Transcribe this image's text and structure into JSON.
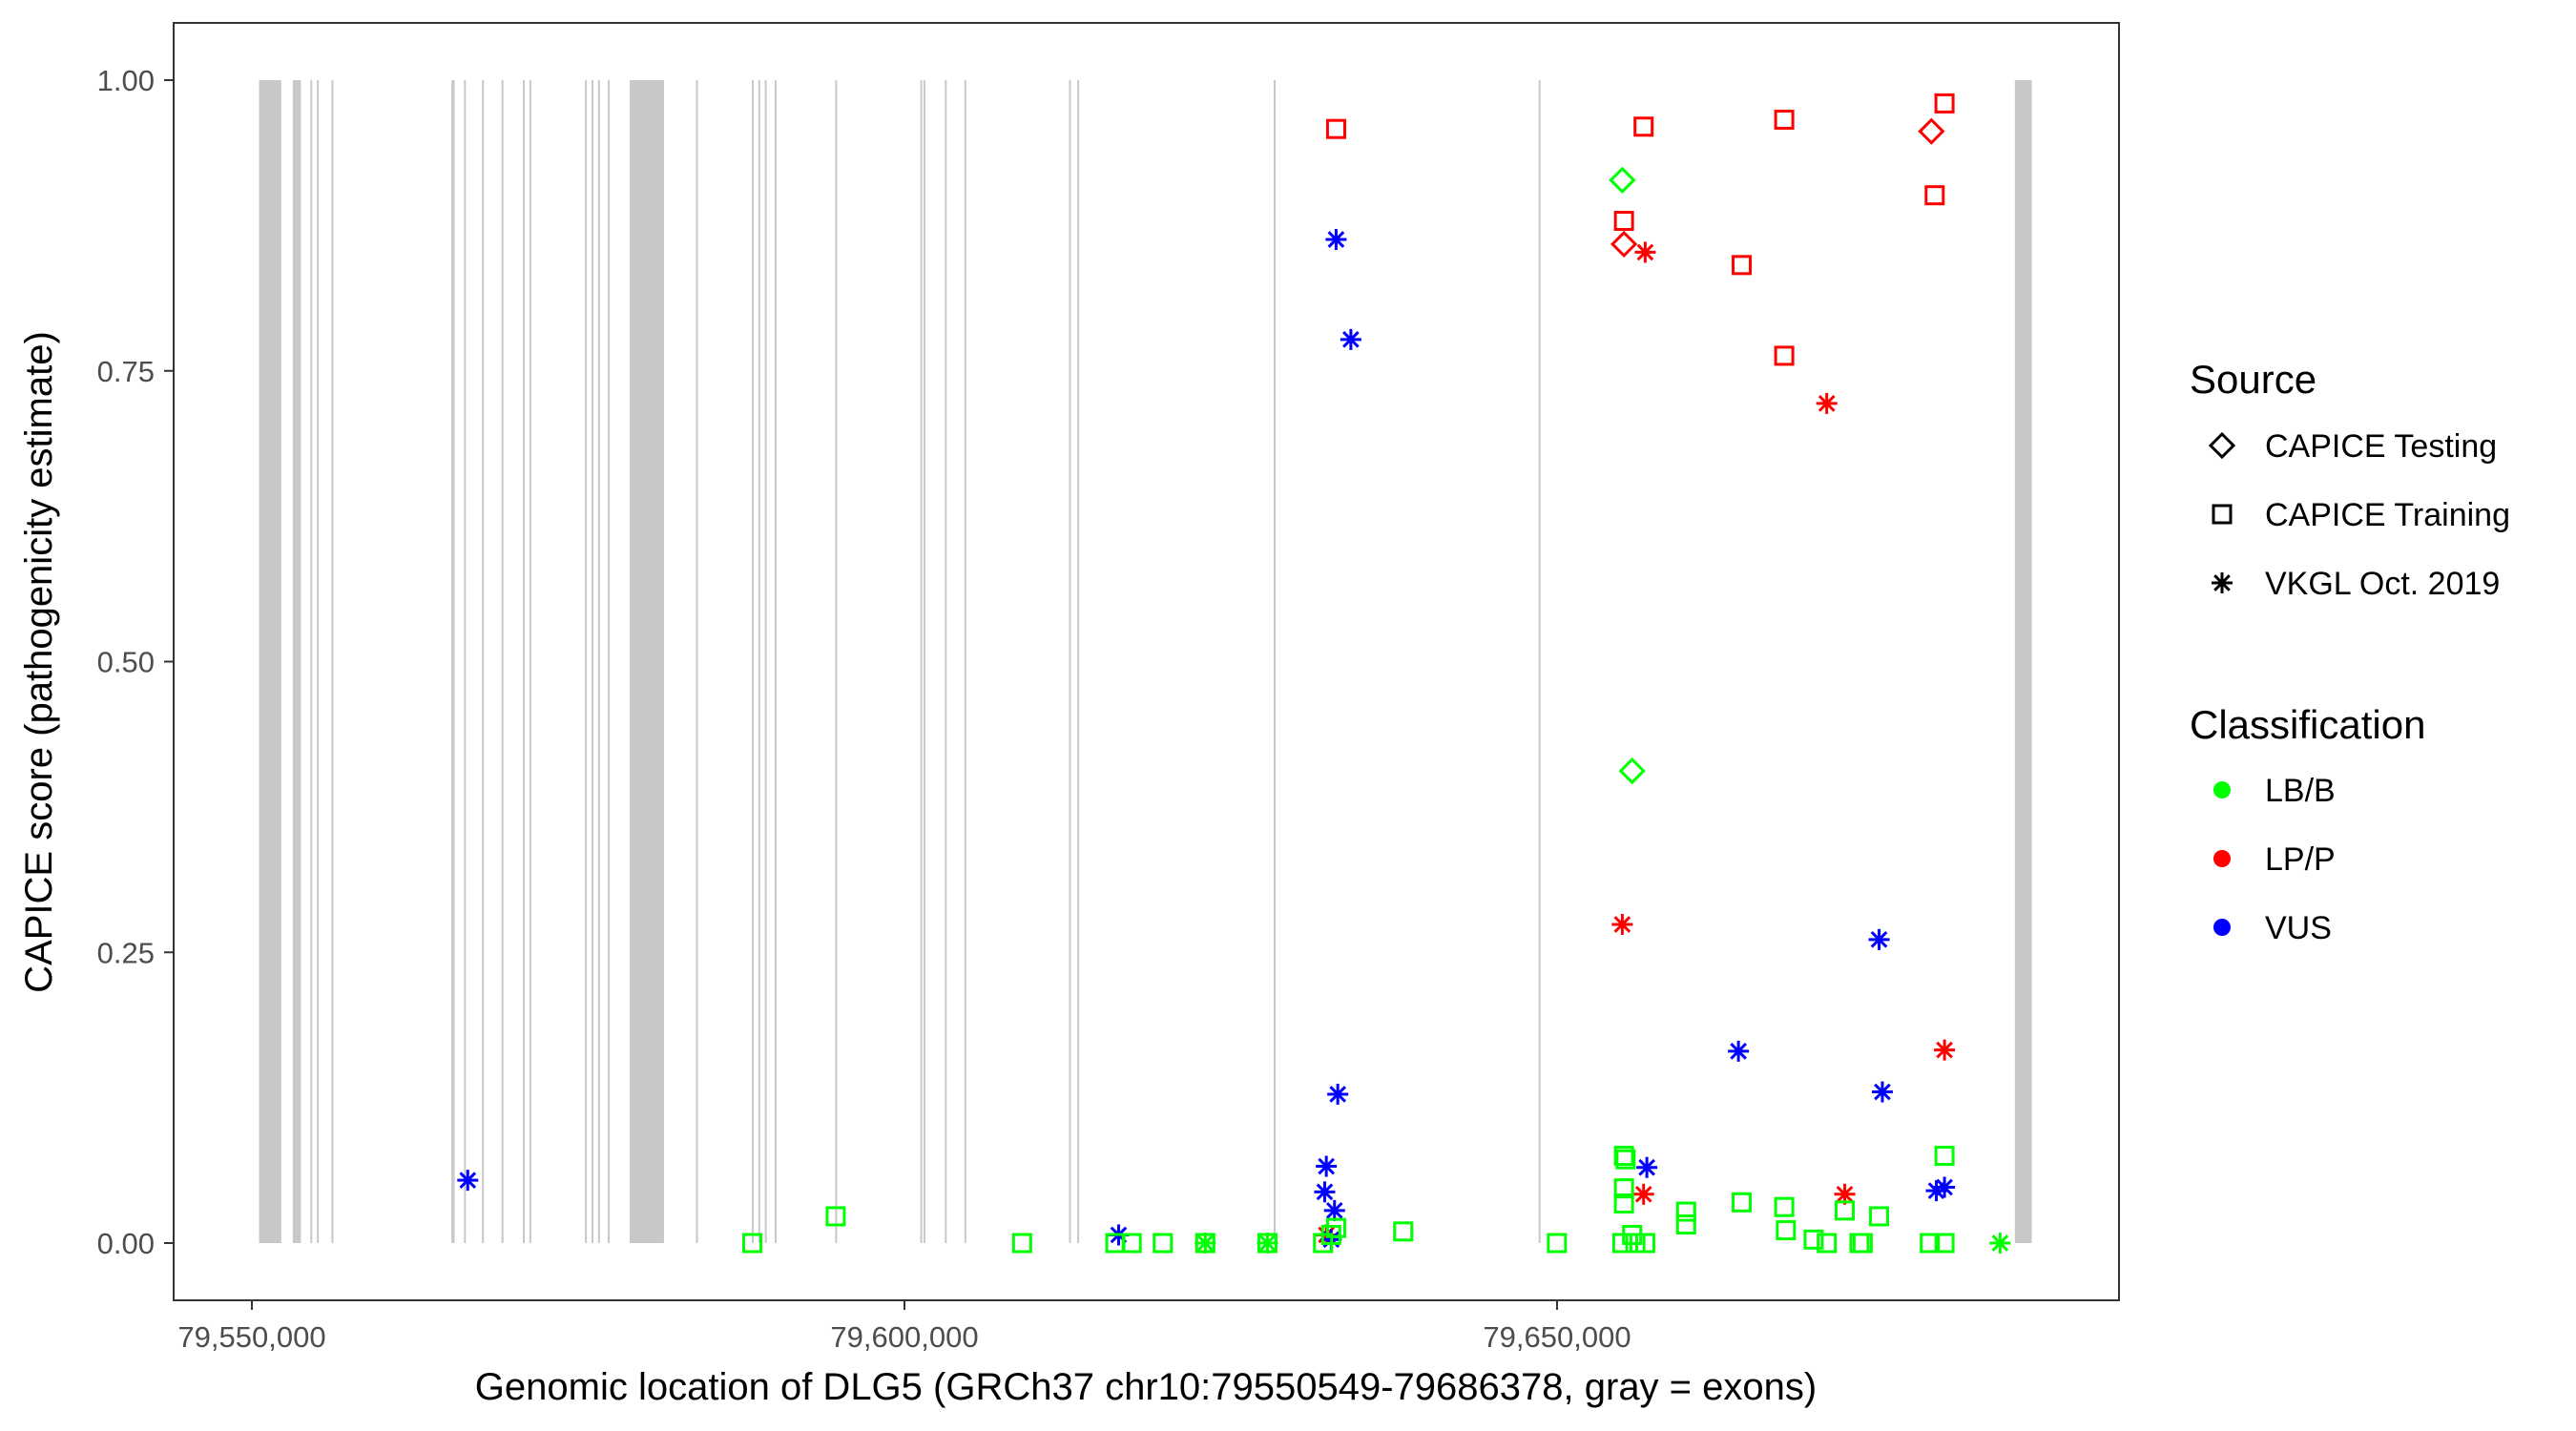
{
  "chart_data": {
    "type": "scatter",
    "xlabel": "Genomic location of DLG5 (GRCh37 chr10:79550549-79686378, gray = exons)",
    "ylabel": "CAPICE score (pathogenicity estimate)",
    "xlim": [
      79542500,
      79693000
    ],
    "ylim": [
      -0.045,
      1.045
    ],
    "x_ticks": [
      79550000,
      79600000,
      79650000
    ],
    "x_tick_labels": [
      "79,550,000",
      "79,600,000",
      "79,650,000"
    ],
    "y_ticks": [
      0,
      0.25,
      0.5,
      0.75,
      1.0
    ],
    "y_tick_labels": [
      "0.00",
      "0.25",
      "0.50",
      "0.75",
      "1.00"
    ],
    "grid": false,
    "exon_color": "#c8c8c8",
    "exons": [
      [
        79550549,
        79552255
      ],
      [
        79553133,
        79553759
      ],
      [
        79554480,
        79554560
      ],
      [
        79554980,
        79555060
      ],
      [
        79556100,
        79556180
      ],
      [
        79565287,
        79565537
      ],
      [
        79566250,
        79566330
      ],
      [
        79567630,
        79567710
      ],
      [
        79569130,
        79569210
      ],
      [
        79570760,
        79570840
      ],
      [
        79571260,
        79571340
      ],
      [
        79575520,
        79575600
      ],
      [
        79576020,
        79576100
      ],
      [
        79576520,
        79576600
      ],
      [
        79577270,
        79577350
      ],
      [
        79578944,
        79581576
      ],
      [
        79584030,
        79584130
      ],
      [
        79588300,
        79588380
      ],
      [
        79588800,
        79588880
      ],
      [
        79589300,
        79589380
      ],
      [
        79590050,
        79590130
      ],
      [
        79594690,
        79594770
      ],
      [
        79601210,
        79601290
      ],
      [
        79601460,
        79601540
      ],
      [
        79603090,
        79603170
      ],
      [
        79604590,
        79604670
      ],
      [
        79612610,
        79612690
      ],
      [
        79613240,
        79613310
      ],
      [
        79628290,
        79628330
      ],
      [
        79648590,
        79648630
      ],
      [
        79685073,
        79686378
      ]
    ],
    "legend": {
      "placement": "right",
      "source_title": "Source",
      "source_items": [
        {
          "label": "CAPICE Testing",
          "shape": "diamond"
        },
        {
          "label": "CAPICE Training",
          "shape": "square"
        },
        {
          "label": "VKGL Oct. 2019",
          "shape": "asterisk"
        }
      ],
      "class_title": "Classification",
      "class_items": [
        {
          "label": "LB/B",
          "color": "#00ff00"
        },
        {
          "label": "LP/P",
          "color": "#ff0000"
        },
        {
          "label": "VUS",
          "color": "#0000ff"
        }
      ]
    },
    "point_fields": [
      "position",
      "score",
      "source",
      "classification"
    ],
    "points": [
      [
        79633073,
        0.958,
        "CAPICE Training",
        "LP/P"
      ],
      [
        79656630,
        0.96,
        "CAPICE Training",
        "LP/P"
      ],
      [
        79667406,
        0.966,
        "CAPICE Training",
        "LP/P"
      ],
      [
        79679686,
        0.98,
        "CAPICE Training",
        "LP/P"
      ],
      [
        79678934,
        0.901,
        "CAPICE Training",
        "LP/P"
      ],
      [
        79655127,
        0.879,
        "CAPICE Training",
        "LP/P"
      ],
      [
        79664148,
        0.841,
        "CAPICE Training",
        "LP/P"
      ],
      [
        79667406,
        0.763,
        "CAPICE Training",
        "LP/P"
      ],
      [
        79655127,
        0.859,
        "CAPICE Testing",
        "LP/P"
      ],
      [
        79678683,
        0.956,
        "CAPICE Testing",
        "LP/P"
      ],
      [
        79655001,
        0.914,
        "CAPICE Testing",
        "LB/B"
      ],
      [
        79655753,
        0.406,
        "CAPICE Testing",
        "LB/B"
      ],
      [
        79656756,
        0.852,
        "VKGL Oct. 2019",
        "LP/P"
      ],
      [
        79670664,
        0.722,
        "VKGL Oct. 2019",
        "LP/P"
      ],
      [
        79655001,
        0.274,
        "VKGL Oct. 2019",
        "LP/P"
      ],
      [
        79679686,
        0.166,
        "VKGL Oct. 2019",
        "LP/P"
      ],
      [
        79656630,
        0.042,
        "VKGL Oct. 2019",
        "LP/P"
      ],
      [
        79672042,
        0.042,
        "VKGL Oct. 2019",
        "LP/P"
      ],
      [
        79632322,
        0.007,
        "VKGL Oct. 2019",
        "LP/P"
      ],
      [
        79633073,
        0.863,
        "VKGL Oct. 2019",
        "VUS"
      ],
      [
        79634202,
        0.777,
        "VKGL Oct. 2019",
        "VUS"
      ],
      [
        79566540,
        0.054,
        "VKGL Oct. 2019",
        "VUS"
      ],
      [
        79633199,
        0.128,
        "VKGL Oct. 2019",
        "VUS"
      ],
      [
        79632322,
        0.066,
        "VKGL Oct. 2019",
        "VUS"
      ],
      [
        79632197,
        0.044,
        "VKGL Oct. 2019",
        "VUS"
      ],
      [
        79632949,
        0.028,
        "VKGL Oct. 2019",
        "VUS"
      ],
      [
        79632698,
        0.003,
        "VKGL Oct. 2019",
        "VUS"
      ],
      [
        79616409,
        0.007,
        "VKGL Oct. 2019",
        "VUS"
      ],
      [
        79656881,
        0.065,
        "VKGL Oct. 2019",
        "VUS"
      ],
      [
        79663898,
        0.165,
        "VKGL Oct. 2019",
        "VUS"
      ],
      [
        79674674,
        0.261,
        "VKGL Oct. 2019",
        "VUS"
      ],
      [
        79674925,
        0.13,
        "VKGL Oct. 2019",
        "VUS"
      ],
      [
        79679060,
        0.045,
        "VKGL Oct. 2019",
        "VUS"
      ],
      [
        79679686,
        0.048,
        "VKGL Oct. 2019",
        "VUS"
      ],
      [
        79623050,
        0.0,
        "VKGL Oct. 2019",
        "LB/B"
      ],
      [
        79627811,
        0.0,
        "VKGL Oct. 2019",
        "LB/B"
      ],
      [
        79683946,
        0.0,
        "VKGL Oct. 2019",
        "LB/B"
      ],
      [
        79588342,
        0.0,
        "CAPICE Training",
        "LB/B"
      ],
      [
        79594732,
        0.023,
        "CAPICE Training",
        "LB/B"
      ],
      [
        79609016,
        0.0,
        "CAPICE Training",
        "LB/B"
      ],
      [
        79616158,
        0.0,
        "CAPICE Training",
        "LB/B"
      ],
      [
        79617411,
        0.0,
        "CAPICE Training",
        "LB/B"
      ],
      [
        79619792,
        0.0,
        "CAPICE Training",
        "LB/B"
      ],
      [
        79623050,
        0.0,
        "CAPICE Training",
        "LB/B"
      ],
      [
        79627811,
        0.0,
        "CAPICE Training",
        "LB/B"
      ],
      [
        79632072,
        0.0,
        "CAPICE Training",
        "LB/B"
      ],
      [
        79632698,
        0.007,
        "CAPICE Training",
        "LB/B"
      ],
      [
        79633073,
        0.013,
        "CAPICE Training",
        "LB/B"
      ],
      [
        79638211,
        0.01,
        "CAPICE Training",
        "LB/B"
      ],
      [
        79649989,
        0.0,
        "CAPICE Training",
        "LB/B"
      ],
      [
        79655001,
        0.0,
        "CAPICE Training",
        "LB/B"
      ],
      [
        79655127,
        0.075,
        "CAPICE Training",
        "LB/B"
      ],
      [
        79655253,
        0.072,
        "CAPICE Training",
        "LB/B"
      ],
      [
        79655127,
        0.047,
        "CAPICE Training",
        "LB/B"
      ],
      [
        79655127,
        0.034,
        "CAPICE Training",
        "LB/B"
      ],
      [
        79655753,
        0.007,
        "CAPICE Training",
        "LB/B"
      ],
      [
        79656004,
        0.0,
        "CAPICE Training",
        "LB/B"
      ],
      [
        79656756,
        0.0,
        "CAPICE Training",
        "LB/B"
      ],
      [
        79659889,
        0.027,
        "CAPICE Training",
        "LB/B"
      ],
      [
        79659889,
        0.016,
        "CAPICE Training",
        "LB/B"
      ],
      [
        79664148,
        0.035,
        "CAPICE Training",
        "LB/B"
      ],
      [
        79667406,
        0.031,
        "CAPICE Training",
        "LB/B"
      ],
      [
        79667531,
        0.011,
        "CAPICE Training",
        "LB/B"
      ],
      [
        79669661,
        0.003,
        "CAPICE Training",
        "LB/B"
      ],
      [
        79670664,
        0.0,
        "CAPICE Training",
        "LB/B"
      ],
      [
        79673170,
        0.0,
        "CAPICE Training",
        "LB/B"
      ],
      [
        79673420,
        0.0,
        "CAPICE Training",
        "LB/B"
      ],
      [
        79672042,
        0.028,
        "CAPICE Training",
        "LB/B"
      ],
      [
        79674674,
        0.023,
        "CAPICE Training",
        "LB/B"
      ],
      [
        79678558,
        0.0,
        "CAPICE Training",
        "LB/B"
      ],
      [
        79679686,
        0.0,
        "CAPICE Training",
        "LB/B"
      ],
      [
        79679686,
        0.075,
        "CAPICE Training",
        "LB/B"
      ]
    ]
  }
}
